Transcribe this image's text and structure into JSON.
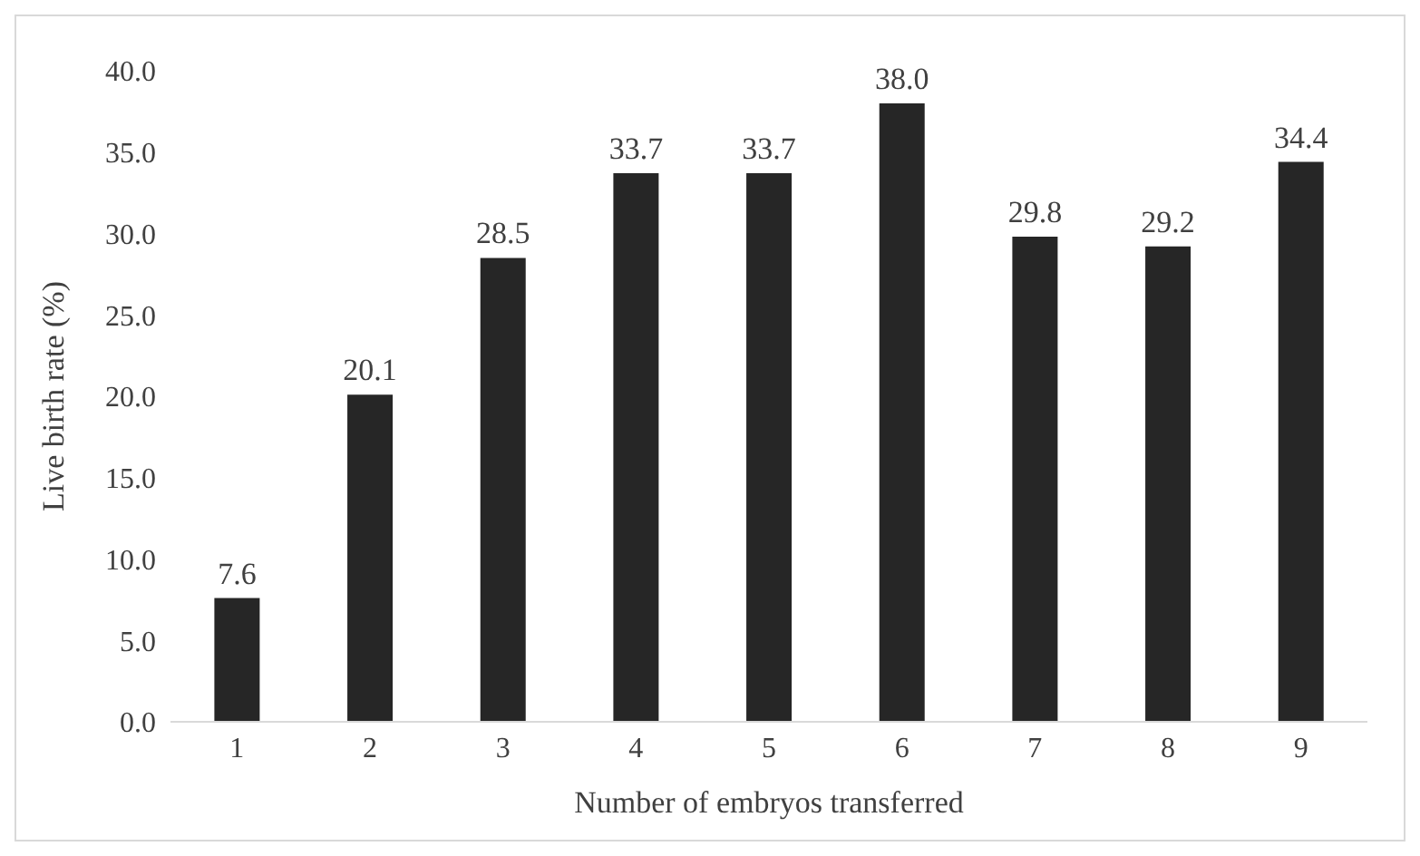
{
  "chart_data": {
    "type": "bar",
    "xlabel": "Number of embryos transferred",
    "ylabel": "Live birth rate (%)",
    "categories": [
      "1",
      "2",
      "3",
      "4",
      "5",
      "6",
      "7",
      "8",
      "9"
    ],
    "values": [
      7.6,
      20.1,
      28.5,
      33.7,
      33.7,
      38.0,
      29.8,
      29.2,
      34.4
    ],
    "value_labels": [
      "7.6",
      "20.1",
      "28.5",
      "33.7",
      "33.7",
      "38.0",
      "29.8",
      "29.2",
      "34.4"
    ],
    "color": "#262626",
    "ylim": [
      0,
      40
    ],
    "yticks": [
      {
        "value": 0,
        "label": "0.0"
      },
      {
        "value": 5,
        "label": "5.0"
      },
      {
        "value": 10,
        "label": "10.0"
      },
      {
        "value": 15,
        "label": "15.0"
      },
      {
        "value": 20,
        "label": "20.0"
      },
      {
        "value": 25,
        "label": "25.0"
      },
      {
        "value": 30,
        "label": "30.0"
      },
      {
        "value": 35,
        "label": "35.0"
      },
      {
        "value": 40,
        "label": "40.0"
      }
    ],
    "grid": false,
    "legend": false
  }
}
